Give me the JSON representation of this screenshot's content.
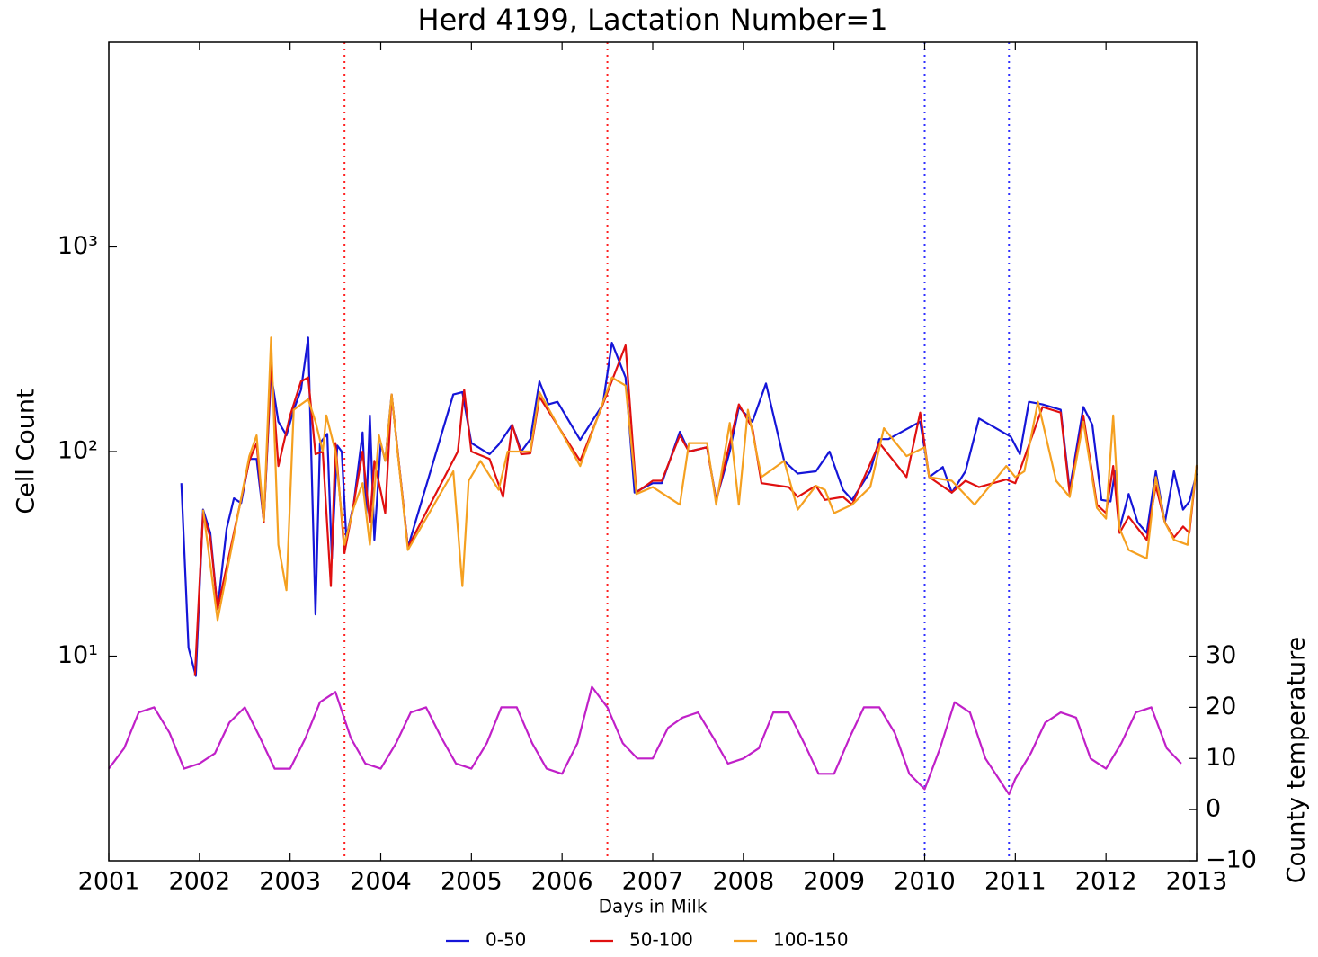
{
  "chart_data": {
    "type": "line",
    "title": "Herd 4199, Lactation Number=1",
    "xlabel": "Days in Milk",
    "ylabel": "Cell Count",
    "y2label": "County temperature",
    "xlim": [
      2001,
      2013
    ],
    "xticks": [
      2001,
      2002,
      2003,
      2004,
      2005,
      2006,
      2007,
      2008,
      2009,
      2010,
      2011,
      2012,
      2013
    ],
    "yscale": "log",
    "ylim": [
      1,
      10000
    ],
    "yticks": [
      {
        "value": 10,
        "label": "10¹"
      },
      {
        "value": 100,
        "label": "10²"
      },
      {
        "value": 1000,
        "label": "10³"
      }
    ],
    "y2lim": [
      -10,
      150
    ],
    "y2ticks": [
      {
        "value": -10,
        "label": "−10"
      },
      0,
      10,
      20,
      30
    ],
    "legend": "lower center",
    "vlines": [
      {
        "x": 2003.6,
        "color": "#ff2020"
      },
      {
        "x": 2006.5,
        "color": "#ff2020"
      },
      {
        "x": 2010.0,
        "color": "#3030ff"
      },
      {
        "x": 2010.93,
        "color": "#3030ff"
      }
    ],
    "series": [
      {
        "name": "0-50",
        "color": "#1515d8",
        "x": [
          2001.8,
          2001.88,
          2001.96,
          2002.04,
          2002.12,
          2002.2,
          2002.3,
          2002.38,
          2002.46,
          2002.55,
          2002.63,
          2002.71,
          2002.79,
          2002.87,
          2002.96,
          2003.04,
          2003.12,
          2003.2,
          2003.28,
          2003.33,
          2003.41,
          2003.46,
          2003.52,
          2003.57,
          2003.62,
          2003.7,
          2003.8,
          2003.84,
          2003.88,
          2003.93,
          2004.0,
          2004.05,
          2004.12,
          2004.3,
          2004.8,
          2004.9,
          2005.0,
          2005.2,
          2005.3,
          2005.45,
          2005.55,
          2005.65,
          2005.75,
          2005.85,
          2005.95,
          2006.2,
          2006.45,
          2006.55,
          2006.7,
          2006.8,
          2007.0,
          2007.1,
          2007.3,
          2007.4,
          2007.6,
          2007.7,
          2007.85,
          2007.95,
          2008.1,
          2008.25,
          2008.45,
          2008.6,
          2008.8,
          2008.95,
          2009.1,
          2009.2,
          2009.4,
          2009.5,
          2009.6,
          2009.95,
          2010.05,
          2010.2,
          2010.3,
          2010.45,
          2010.6,
          2010.95,
          2011.05,
          2011.15,
          2011.3,
          2011.5,
          2011.6,
          2011.75,
          2011.85,
          2011.95,
          2012.05,
          2012.1,
          2012.15,
          2012.25,
          2012.35,
          2012.45,
          2012.55,
          2012.65,
          2012.75,
          2012.85,
          2012.92,
          2013.0
        ],
        "values": [
          70,
          11,
          8,
          52,
          40,
          17,
          42,
          59,
          56,
          92,
          92,
          46,
          240,
          140,
          120,
          160,
          200,
          360,
          16,
          110,
          122,
          30,
          107,
          100,
          38,
          55,
          124,
          50,
          150,
          37,
          110,
          90,
          190,
          34,
          190,
          195,
          110,
          97,
          108,
          135,
          100,
          115,
          220,
          170,
          175,
          114,
          170,
          340,
          230,
          63,
          70,
          70,
          125,
          100,
          105,
          58,
          100,
          165,
          140,
          215,
          90,
          78,
          80,
          100,
          65,
          58,
          80,
          115,
          115,
          140,
          75,
          84,
          63,
          80,
          145,
          118,
          97,
          175,
          170,
          160,
          65,
          165,
          135,
          58,
          57,
          80,
          42,
          62,
          45,
          40,
          80,
          45,
          80,
          52,
          57,
          78
        ]
      },
      {
        "name": "50-100",
        "color": "#e01010",
        "x": [
          2001.95,
          2002.04,
          2002.12,
          2002.2,
          2002.55,
          2002.63,
          2002.71,
          2002.79,
          2002.87,
          2003.0,
          2003.12,
          2003.2,
          2003.28,
          2003.36,
          2003.45,
          2003.5,
          2003.6,
          2003.7,
          2003.8,
          2003.88,
          2003.93,
          2004.05,
          2004.12,
          2004.3,
          2004.85,
          2004.92,
          2005.0,
          2005.2,
          2005.35,
          2005.45,
          2005.55,
          2005.65,
          2005.75,
          2006.2,
          2006.45,
          2006.7,
          2006.82,
          2007.0,
          2007.1,
          2007.3,
          2007.4,
          2007.6,
          2007.7,
          2007.95,
          2008.1,
          2008.2,
          2008.5,
          2008.6,
          2008.8,
          2008.9,
          2009.1,
          2009.2,
          2009.5,
          2009.8,
          2009.95,
          2010.05,
          2010.3,
          2010.45,
          2010.6,
          2010.9,
          2011.0,
          2011.3,
          2011.5,
          2011.6,
          2011.75,
          2011.9,
          2012.0,
          2012.08,
          2012.15,
          2012.25,
          2012.45,
          2012.55,
          2012.65,
          2012.75,
          2012.85,
          2012.92,
          2013.0
        ],
        "values": [
          8,
          50,
          38,
          17,
          90,
          110,
          45,
          270,
          85,
          150,
          220,
          230,
          97,
          100,
          22,
          110,
          32,
          55,
          100,
          45,
          90,
          50,
          190,
          34,
          100,
          200,
          100,
          92,
          60,
          135,
          97,
          98,
          185,
          90,
          170,
          330,
          63,
          72,
          72,
          120,
          100,
          105,
          57,
          170,
          130,
          70,
          67,
          60,
          68,
          58,
          60,
          55,
          110,
          75,
          155,
          75,
          63,
          72,
          67,
          73,
          70,
          165,
          155,
          62,
          150,
          55,
          50,
          85,
          40,
          48,
          37,
          68,
          45,
          38,
          43,
          40,
          85
        ]
      },
      {
        "name": "100-150",
        "color": "#f5a020",
        "x": [
          2002.04,
          2002.2,
          2002.55,
          2002.63,
          2002.71,
          2002.79,
          2002.87,
          2002.96,
          2003.04,
          2003.12,
          2003.2,
          2003.28,
          2003.36,
          2003.4,
          2003.5,
          2003.6,
          2003.7,
          2003.8,
          2003.88,
          2003.98,
          2004.05,
          2004.12,
          2004.3,
          2004.8,
          2004.9,
          2004.97,
          2005.1,
          2005.3,
          2005.4,
          2005.5,
          2005.65,
          2005.75,
          2006.2,
          2006.55,
          2006.7,
          2006.82,
          2007.0,
          2007.3,
          2007.4,
          2007.6,
          2007.7,
          2007.85,
          2007.95,
          2008.05,
          2008.2,
          2008.45,
          2008.6,
          2008.8,
          2008.9,
          2009.0,
          2009.2,
          2009.4,
          2009.55,
          2009.8,
          2010.0,
          2010.05,
          2010.3,
          2010.55,
          2010.9,
          2011.0,
          2011.1,
          2011.25,
          2011.45,
          2011.6,
          2011.75,
          2011.9,
          2012.0,
          2012.08,
          2012.15,
          2012.25,
          2012.45,
          2012.55,
          2012.65,
          2012.75,
          2012.9,
          2013.0
        ],
        "values": [
          52,
          15,
          95,
          120,
          46,
          360,
          35,
          21,
          160,
          170,
          180,
          140,
          100,
          150,
          100,
          35,
          53,
          70,
          35,
          120,
          90,
          190,
          33,
          80,
          22,
          72,
          90,
          65,
          100,
          100,
          100,
          195,
          85,
          230,
          210,
          62,
          67,
          55,
          110,
          110,
          55,
          138,
          55,
          160,
          75,
          90,
          52,
          68,
          65,
          50,
          55,
          67,
          130,
          95,
          105,
          75,
          72,
          55,
          85,
          75,
          80,
          175,
          72,
          60,
          140,
          53,
          47,
          150,
          42,
          33,
          30,
          75,
          45,
          37,
          35,
          86
        ]
      },
      {
        "axis": "y2",
        "color": "#c020c8",
        "x": [
          2001.0,
          2001.17,
          2001.33,
          2001.5,
          2001.67,
          2001.83,
          2002.0,
          2002.17,
          2002.33,
          2002.5,
          2002.67,
          2002.83,
          2003.0,
          2003.17,
          2003.33,
          2003.5,
          2003.67,
          2003.83,
          2004.0,
          2004.17,
          2004.33,
          2004.5,
          2004.67,
          2004.83,
          2005.0,
          2005.17,
          2005.33,
          2005.5,
          2005.67,
          2005.83,
          2006.0,
          2006.17,
          2006.33,
          2006.5,
          2006.67,
          2006.83,
          2007.0,
          2007.17,
          2007.33,
          2007.5,
          2007.67,
          2007.83,
          2008.0,
          2008.17,
          2008.33,
          2008.5,
          2008.67,
          2008.83,
          2009.0,
          2009.17,
          2009.33,
          2009.5,
          2009.67,
          2009.83,
          2010.0,
          2010.17,
          2010.33,
          2010.5,
          2010.67,
          2010.93,
          2011.0,
          2011.17,
          2011.33,
          2011.5,
          2011.67,
          2011.83,
          2012.0,
          2012.17,
          2012.33,
          2012.5,
          2012.67,
          2012.83
        ],
        "values": [
          8,
          12,
          19,
          20,
          15,
          8,
          9,
          11,
          17,
          20,
          14,
          8,
          8,
          14,
          21,
          23,
          14,
          9,
          8,
          13,
          19,
          20,
          14,
          9,
          8,
          13,
          20,
          20,
          13,
          8,
          7,
          13,
          24,
          20,
          13,
          10,
          10,
          16,
          18,
          19,
          14,
          9,
          10,
          12,
          19,
          19,
          13,
          7,
          7,
          14,
          20,
          20,
          15,
          7,
          4,
          12,
          21,
          19,
          10,
          3,
          6,
          11,
          17,
          19,
          18,
          10,
          8,
          13,
          19,
          20,
          12,
          9
        ]
      }
    ]
  }
}
